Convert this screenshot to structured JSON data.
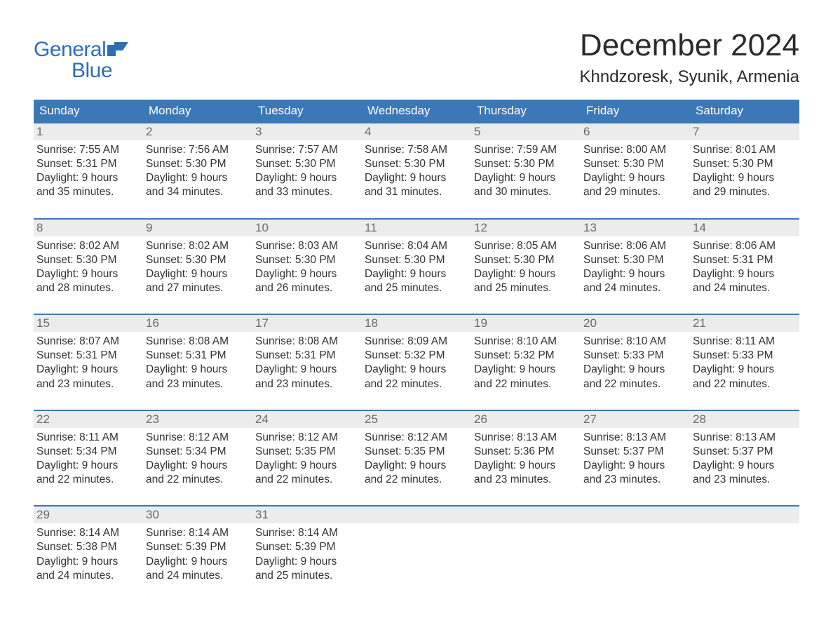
{
  "logo": {
    "top": "General",
    "bottom": "Blue"
  },
  "title": "December 2024",
  "location": "Khndzoresk, Syunik, Armenia",
  "colors": {
    "brand_blue": "#3b78b8",
    "logo_blue": "#2d6fb4",
    "daynum_bg": "#ececec",
    "daynum_text": "#6b6b6b",
    "body_text": "#333333",
    "background": "#ffffff"
  },
  "layout": {
    "columns": 7,
    "week_border_top": "2px solid #3b78b8",
    "daycell_fontsize": 15.5,
    "header_fontsize": 17,
    "title_fontsize": 44,
    "location_fontsize": 24
  },
  "weekdays": [
    "Sunday",
    "Monday",
    "Tuesday",
    "Wednesday",
    "Thursday",
    "Friday",
    "Saturday"
  ],
  "weeks": [
    [
      {
        "n": "1",
        "sunrise": "7:55 AM",
        "sunset": "5:31 PM",
        "dl1": "Daylight: 9 hours",
        "dl2": "and 35 minutes."
      },
      {
        "n": "2",
        "sunrise": "7:56 AM",
        "sunset": "5:30 PM",
        "dl1": "Daylight: 9 hours",
        "dl2": "and 34 minutes."
      },
      {
        "n": "3",
        "sunrise": "7:57 AM",
        "sunset": "5:30 PM",
        "dl1": "Daylight: 9 hours",
        "dl2": "and 33 minutes."
      },
      {
        "n": "4",
        "sunrise": "7:58 AM",
        "sunset": "5:30 PM",
        "dl1": "Daylight: 9 hours",
        "dl2": "and 31 minutes."
      },
      {
        "n": "5",
        "sunrise": "7:59 AM",
        "sunset": "5:30 PM",
        "dl1": "Daylight: 9 hours",
        "dl2": "and 30 minutes."
      },
      {
        "n": "6",
        "sunrise": "8:00 AM",
        "sunset": "5:30 PM",
        "dl1": "Daylight: 9 hours",
        "dl2": "and 29 minutes."
      },
      {
        "n": "7",
        "sunrise": "8:01 AM",
        "sunset": "5:30 PM",
        "dl1": "Daylight: 9 hours",
        "dl2": "and 29 minutes."
      }
    ],
    [
      {
        "n": "8",
        "sunrise": "8:02 AM",
        "sunset": "5:30 PM",
        "dl1": "Daylight: 9 hours",
        "dl2": "and 28 minutes."
      },
      {
        "n": "9",
        "sunrise": "8:02 AM",
        "sunset": "5:30 PM",
        "dl1": "Daylight: 9 hours",
        "dl2": "and 27 minutes."
      },
      {
        "n": "10",
        "sunrise": "8:03 AM",
        "sunset": "5:30 PM",
        "dl1": "Daylight: 9 hours",
        "dl2": "and 26 minutes."
      },
      {
        "n": "11",
        "sunrise": "8:04 AM",
        "sunset": "5:30 PM",
        "dl1": "Daylight: 9 hours",
        "dl2": "and 25 minutes."
      },
      {
        "n": "12",
        "sunrise": "8:05 AM",
        "sunset": "5:30 PM",
        "dl1": "Daylight: 9 hours",
        "dl2": "and 25 minutes."
      },
      {
        "n": "13",
        "sunrise": "8:06 AM",
        "sunset": "5:30 PM",
        "dl1": "Daylight: 9 hours",
        "dl2": "and 24 minutes."
      },
      {
        "n": "14",
        "sunrise": "8:06 AM",
        "sunset": "5:31 PM",
        "dl1": "Daylight: 9 hours",
        "dl2": "and 24 minutes."
      }
    ],
    [
      {
        "n": "15",
        "sunrise": "8:07 AM",
        "sunset": "5:31 PM",
        "dl1": "Daylight: 9 hours",
        "dl2": "and 23 minutes."
      },
      {
        "n": "16",
        "sunrise": "8:08 AM",
        "sunset": "5:31 PM",
        "dl1": "Daylight: 9 hours",
        "dl2": "and 23 minutes."
      },
      {
        "n": "17",
        "sunrise": "8:08 AM",
        "sunset": "5:31 PM",
        "dl1": "Daylight: 9 hours",
        "dl2": "and 23 minutes."
      },
      {
        "n": "18",
        "sunrise": "8:09 AM",
        "sunset": "5:32 PM",
        "dl1": "Daylight: 9 hours",
        "dl2": "and 22 minutes."
      },
      {
        "n": "19",
        "sunrise": "8:10 AM",
        "sunset": "5:32 PM",
        "dl1": "Daylight: 9 hours",
        "dl2": "and 22 minutes."
      },
      {
        "n": "20",
        "sunrise": "8:10 AM",
        "sunset": "5:33 PM",
        "dl1": "Daylight: 9 hours",
        "dl2": "and 22 minutes."
      },
      {
        "n": "21",
        "sunrise": "8:11 AM",
        "sunset": "5:33 PM",
        "dl1": "Daylight: 9 hours",
        "dl2": "and 22 minutes."
      }
    ],
    [
      {
        "n": "22",
        "sunrise": "8:11 AM",
        "sunset": "5:34 PM",
        "dl1": "Daylight: 9 hours",
        "dl2": "and 22 minutes."
      },
      {
        "n": "23",
        "sunrise": "8:12 AM",
        "sunset": "5:34 PM",
        "dl1": "Daylight: 9 hours",
        "dl2": "and 22 minutes."
      },
      {
        "n": "24",
        "sunrise": "8:12 AM",
        "sunset": "5:35 PM",
        "dl1": "Daylight: 9 hours",
        "dl2": "and 22 minutes."
      },
      {
        "n": "25",
        "sunrise": "8:12 AM",
        "sunset": "5:35 PM",
        "dl1": "Daylight: 9 hours",
        "dl2": "and 22 minutes."
      },
      {
        "n": "26",
        "sunrise": "8:13 AM",
        "sunset": "5:36 PM",
        "dl1": "Daylight: 9 hours",
        "dl2": "and 23 minutes."
      },
      {
        "n": "27",
        "sunrise": "8:13 AM",
        "sunset": "5:37 PM",
        "dl1": "Daylight: 9 hours",
        "dl2": "and 23 minutes."
      },
      {
        "n": "28",
        "sunrise": "8:13 AM",
        "sunset": "5:37 PM",
        "dl1": "Daylight: 9 hours",
        "dl2": "and 23 minutes."
      }
    ],
    [
      {
        "n": "29",
        "sunrise": "8:14 AM",
        "sunset": "5:38 PM",
        "dl1": "Daylight: 9 hours",
        "dl2": "and 24 minutes."
      },
      {
        "n": "30",
        "sunrise": "8:14 AM",
        "sunset": "5:39 PM",
        "dl1": "Daylight: 9 hours",
        "dl2": "and 24 minutes."
      },
      {
        "n": "31",
        "sunrise": "8:14 AM",
        "sunset": "5:39 PM",
        "dl1": "Daylight: 9 hours",
        "dl2": "and 25 minutes."
      },
      null,
      null,
      null,
      null
    ]
  ],
  "labels": {
    "sunrise_prefix": "Sunrise: ",
    "sunset_prefix": "Sunset: "
  }
}
